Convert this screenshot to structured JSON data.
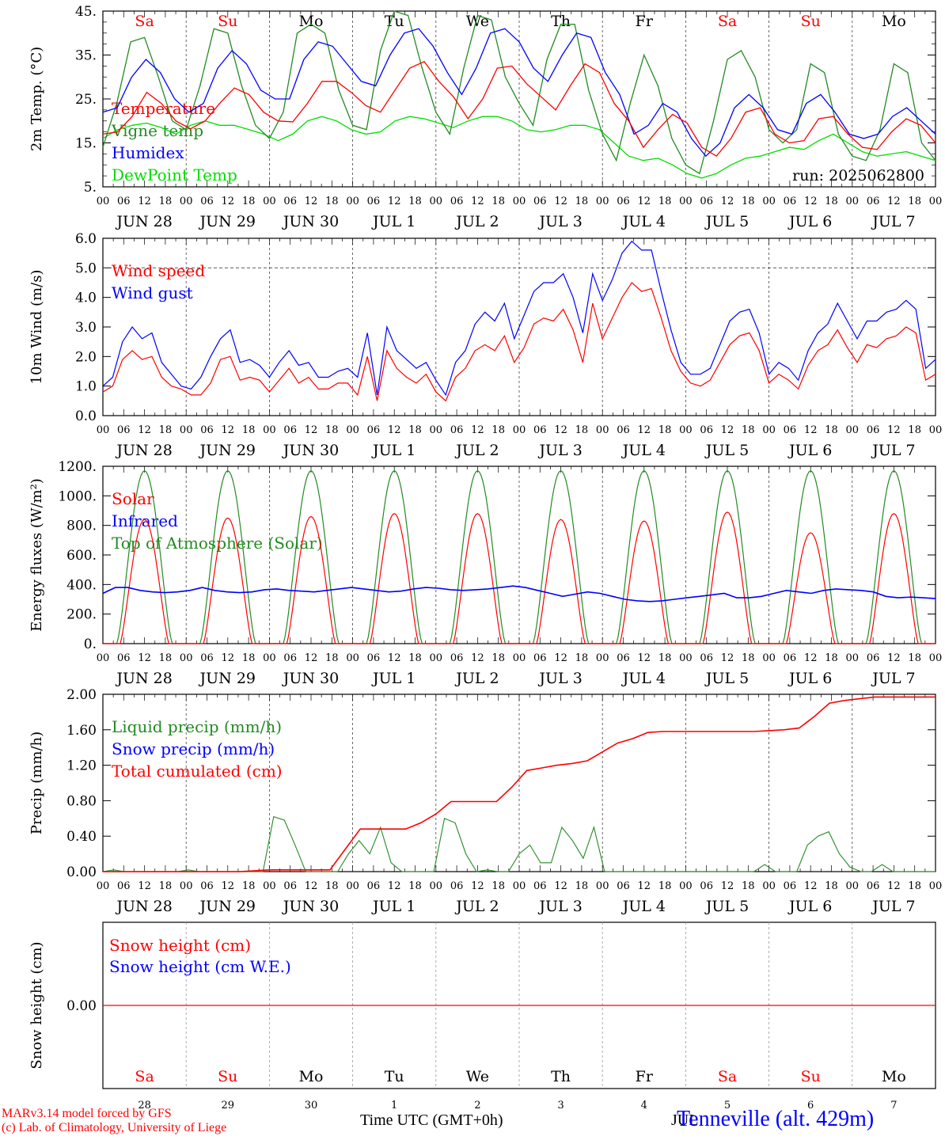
{
  "colors": {
    "red": "#ff0000",
    "green": "#228b22",
    "blue": "#0000ff",
    "lightgreen": "#00dd00",
    "grid": "#444444",
    "axis": "#000000"
  },
  "x_axis": {
    "hours": [
      "00",
      "06",
      "12",
      "18"
    ],
    "hours_final": "00",
    "date_labels": [
      "JUN 28",
      "JUN 29",
      "JUN 30",
      "JUL  1",
      "JUL  2",
      "JUL  3",
      "JUL  4",
      "JUL  5",
      "JUL  6",
      "JUL  7"
    ],
    "weekdays": [
      {
        "label": "Sa",
        "weekend": true
      },
      {
        "label": "Su",
        "weekend": true
      },
      {
        "label": "Mo",
        "weekend": false
      },
      {
        "label": "Tu",
        "weekend": false
      },
      {
        "label": "We",
        "weekend": false
      },
      {
        "label": "Th",
        "weekend": false
      },
      {
        "label": "Fr",
        "weekend": false
      },
      {
        "label": "Sa",
        "weekend": true
      },
      {
        "label": "Su",
        "weekend": true
      },
      {
        "label": "Mo",
        "weekend": false
      }
    ],
    "day_numbers": [
      "28",
      "29",
      "30",
      "1",
      "2",
      "3",
      "4",
      "5",
      "6",
      "7"
    ],
    "bottom_title": "Time UTC (GMT+0h)",
    "month_overlay": "JUL"
  },
  "footer": {
    "model": "MARv3.14 model forced by GFS",
    "credit": "(c) Lab. of Climatology, University of Liege",
    "station": "Tenneville (alt. 429m)"
  },
  "chart_data": [
    {
      "type": "line",
      "ylabel": "2m Temp. (°C)",
      "yticks": [
        "45.",
        "35.",
        "25.",
        "15.",
        "5."
      ],
      "ylim": [
        5,
        45
      ],
      "annotation": "run: 2025062800",
      "series": [
        {
          "name": "Temperature",
          "color": "#ff0000",
          "values": [
            17,
            17.5,
            21,
            26.5,
            24,
            20,
            18.2,
            20,
            24,
            27.5,
            26,
            22,
            20,
            19.8,
            24,
            29,
            29,
            26.5,
            23.5,
            22,
            27,
            32,
            33.5,
            29,
            25.5,
            20.5,
            25,
            32,
            32.5,
            28.5,
            25.5,
            22.5,
            28,
            33,
            31,
            24,
            20,
            14,
            18,
            21.5,
            19.5,
            14,
            12,
            16,
            22,
            23,
            17,
            15,
            15.5,
            20.5,
            21,
            17,
            14,
            13.5,
            17.5,
            20.5,
            19,
            15
          ]
        },
        {
          "name": "Vigne temp",
          "color": "#228b22",
          "values": [
            14,
            24,
            38,
            39,
            30,
            20,
            18,
            28,
            41,
            40,
            28,
            19,
            16,
            22,
            40,
            42,
            40,
            27,
            19,
            18,
            36,
            45,
            44,
            32,
            22,
            17,
            32,
            44,
            43,
            30,
            24,
            19,
            34,
            42,
            42,
            27,
            17,
            11,
            24,
            35,
            28,
            16,
            10,
            8,
            20,
            34,
            36,
            30,
            18,
            15,
            18,
            33,
            31,
            17,
            12,
            11,
            18,
            33,
            31,
            15,
            11
          ]
        },
        {
          "name": "Humidex",
          "color": "#0000ff",
          "values": [
            22,
            23,
            30,
            34,
            31,
            25,
            22,
            24,
            32,
            36,
            33,
            27,
            25,
            25,
            34,
            38,
            37,
            33,
            29,
            28,
            35,
            40,
            41,
            37,
            31,
            26,
            32,
            40,
            41,
            38,
            32,
            29,
            35,
            40,
            39,
            31,
            26,
            17,
            19,
            24,
            22,
            16,
            12,
            15,
            23,
            26,
            23,
            18,
            17,
            24,
            26,
            22,
            17,
            16,
            17,
            21,
            23,
            20,
            17
          ]
        },
        {
          "name": "DewPoint Temp",
          "color": "#00dd00",
          "values": [
            16,
            18,
            19,
            19.5,
            18.5,
            17,
            19,
            20,
            19,
            19,
            18,
            17,
            15.5,
            17,
            20,
            21,
            20,
            18,
            17,
            17.5,
            20,
            21,
            20.5,
            19.5,
            18.5,
            20,
            21,
            21,
            20,
            18,
            17.5,
            18,
            19,
            19,
            18,
            15,
            12,
            11,
            11.5,
            10,
            8,
            7,
            8,
            10,
            11.5,
            12,
            13,
            14,
            13.5,
            15.5,
            17,
            15,
            13,
            12,
            12.5,
            13,
            12,
            11
          ]
        }
      ]
    },
    {
      "type": "line",
      "ylabel": "10m Wind (m/s)",
      "yticks": [
        "6.0",
        "5.0",
        "4.0",
        "3.0",
        "2.0",
        "1.0",
        "0.0"
      ],
      "ylim": [
        0,
        6
      ],
      "series": [
        {
          "name": "Wind speed",
          "color": "#ff0000",
          "values": [
            0.8,
            1,
            1.9,
            2.2,
            1.9,
            2,
            1.3,
            1,
            0.9,
            0.7,
            0.7,
            1.1,
            1.9,
            2,
            1.2,
            1.3,
            1.2,
            0.8,
            1.2,
            1.6,
            1.1,
            1.3,
            0.9,
            0.9,
            1.1,
            1.1,
            0.7,
            2,
            0.5,
            2.2,
            1.6,
            1.3,
            1.1,
            1.4,
            0.8,
            0.5,
            1.3,
            1.6,
            2.2,
            2.4,
            2.2,
            2.7,
            1.8,
            2.3,
            3.1,
            3.3,
            3.2,
            3.6,
            2.9,
            1.8,
            3.8,
            2.6,
            3.3,
            4,
            4.5,
            4.2,
            4.3,
            3.3,
            2.2,
            1.5,
            1.1,
            1,
            1.2,
            1.8,
            2.4,
            2.7,
            2.8,
            2.2,
            1.1,
            1.4,
            1.2,
            0.9,
            1.7,
            2.2,
            2.4,
            2.9,
            2.3,
            1.8,
            2.4,
            2.3,
            2.6,
            2.7,
            3,
            2.8,
            1.2,
            1.4
          ]
        },
        {
          "name": "Wind gust",
          "color": "#0000ff",
          "values": [
            1,
            1.3,
            2.5,
            3,
            2.6,
            2.8,
            1.8,
            1.4,
            1,
            0.9,
            1.3,
            2,
            2.6,
            2.9,
            1.8,
            1.9,
            1.7,
            1.3,
            1.8,
            2.2,
            1.7,
            1.8,
            1.3,
            1.3,
            1.5,
            1.6,
            1.3,
            2.8,
            0.7,
            3,
            2.2,
            1.9,
            1.6,
            1.8,
            1.2,
            0.7,
            1.8,
            2.2,
            3.1,
            3.5,
            3.2,
            3.8,
            2.6,
            3.4,
            4.2,
            4.5,
            4.5,
            4.8,
            4,
            2.8,
            4.8,
            3.9,
            4.6,
            5.5,
            5.9,
            5.6,
            5.6,
            4.2,
            2.9,
            1.8,
            1.4,
            1.4,
            1.6,
            2.4,
            3.2,
            3.5,
            3.6,
            2.8,
            1.4,
            1.8,
            1.6,
            1.2,
            2.2,
            2.8,
            3.1,
            3.8,
            3.2,
            2.6,
            3.2,
            3.2,
            3.5,
            3.6,
            3.9,
            3.6,
            1.6,
            1.9
          ]
        }
      ]
    },
    {
      "type": "line",
      "ylabel": "Energy fluxes (W/m²)",
      "yticks": [
        "1200.",
        "1000.",
        "800.",
        "600.",
        "400.",
        "200.",
        "0."
      ],
      "ylim": [
        0,
        1200
      ],
      "series": [
        {
          "name": "Solar",
          "color": "#ff0000",
          "daily_peak": [
            840,
            850,
            860,
            880,
            880,
            840,
            830,
            890,
            750,
            880
          ]
        },
        {
          "name": "Infrared",
          "color": "#0000ff",
          "values": [
            340,
            380,
            380,
            360,
            350,
            345,
            350,
            360,
            380,
            360,
            350,
            345,
            350,
            365,
            370,
            360,
            355,
            350,
            360,
            370,
            380,
            370,
            360,
            350,
            355,
            370,
            380,
            375,
            365,
            360,
            365,
            370,
            380,
            390,
            380,
            360,
            340,
            320,
            335,
            350,
            340,
            320,
            300,
            290,
            285,
            290,
            300,
            310,
            320,
            330,
            340,
            310,
            310,
            320,
            340,
            360,
            350,
            340,
            360,
            370,
            365,
            360,
            350,
            320,
            310,
            315,
            310,
            305
          ]
        },
        {
          "name": "Top of Atmosphere (Solar)",
          "color": "#228b22",
          "daily_peak": 1170
        }
      ]
    },
    {
      "type": "line",
      "ylabel": "Precip (mm/h)",
      "yticks": [
        "2.00",
        "1.60",
        "1.20",
        "0.80",
        "0.40",
        "0.00"
      ],
      "ylim": [
        0,
        2
      ],
      "series": [
        {
          "name": "Liquid precip (mm/h)",
          "color": "#228b22",
          "values": [
            0,
            0.02,
            0,
            0,
            0,
            0,
            0,
            0,
            0.02,
            0,
            0,
            0,
            0,
            0,
            0,
            0,
            0.62,
            0.58,
            0.3,
            0,
            0,
            0,
            0,
            0.2,
            0.35,
            0.2,
            0.5,
            0.1,
            0,
            0,
            0,
            0,
            0.6,
            0.55,
            0.2,
            0,
            0.02,
            0,
            0,
            0.2,
            0.3,
            0.1,
            0.1,
            0.5,
            0.35,
            0.15,
            0.5,
            0,
            0,
            0,
            0,
            0,
            0,
            0,
            0,
            0,
            0,
            0,
            0,
            0,
            0,
            0,
            0.08,
            0,
            0,
            0,
            0.3,
            0.4,
            0.45,
            0.2,
            0.05,
            0,
            0,
            0.08,
            0,
            0,
            0,
            0,
            0
          ]
        },
        {
          "name": "Snow precip (mm/h)",
          "color": "#0000ff",
          "values": []
        },
        {
          "name": "Total cumulated (cm)",
          "color": "#ff0000",
          "values": [
            0,
            0,
            0,
            0,
            0,
            0,
            0,
            0,
            0,
            0,
            0.01,
            0.02,
            0.02,
            0.02,
            0.02,
            0.02,
            0.25,
            0.48,
            0.48,
            0.48,
            0.48,
            0.55,
            0.65,
            0.79,
            0.79,
            0.79,
            0.79,
            0.95,
            1.14,
            1.17,
            1.2,
            1.22,
            1.25,
            1.35,
            1.45,
            1.5,
            1.57,
            1.58,
            1.58,
            1.58,
            1.58,
            1.58,
            1.58,
            1.58,
            1.59,
            1.6,
            1.62,
            1.75,
            1.9,
            1.93,
            1.95,
            1.97,
            1.97,
            1.97,
            1.97,
            1.97
          ]
        }
      ]
    },
    {
      "type": "line",
      "ylabel": "Snow height (cm)",
      "yticks": [
        "0.00"
      ],
      "series": [
        {
          "name": "Snow height (cm)",
          "color": "#ff0000",
          "values": [
            0,
            0
          ]
        },
        {
          "name": "Snow height (cm W.E.)",
          "color": "#0000ff",
          "values": []
        }
      ]
    }
  ]
}
